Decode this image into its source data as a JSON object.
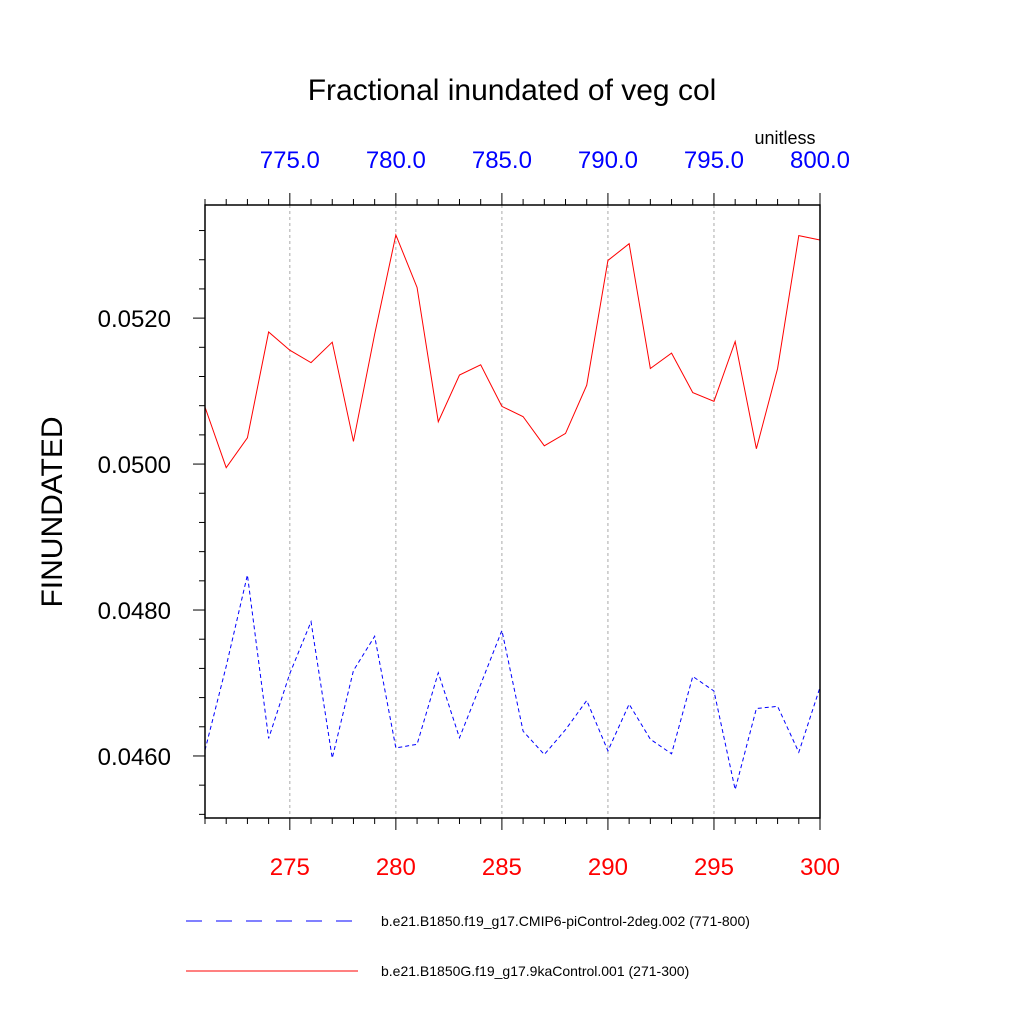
{
  "chart_data": {
    "type": "line",
    "title": "Fractional inundated of veg col",
    "units": "unitless",
    "ylabel": "FINUNDATED",
    "xlim_bottom": [
      271,
      300
    ],
    "xlim_top": [
      771,
      800
    ],
    "ylim": [
      0.04515,
      0.05355
    ],
    "bottom_ticks": [
      {
        "value": 275,
        "label": "275"
      },
      {
        "value": 280,
        "label": "280"
      },
      {
        "value": 285,
        "label": "285"
      },
      {
        "value": 290,
        "label": "290"
      },
      {
        "value": 295,
        "label": "295"
      },
      {
        "value": 300,
        "label": "300"
      }
    ],
    "top_ticks": [
      {
        "value": 775,
        "label": "775.0"
      },
      {
        "value": 780,
        "label": "780.0"
      },
      {
        "value": 785,
        "label": "785.0"
      },
      {
        "value": 790,
        "label": "790.0"
      },
      {
        "value": 795,
        "label": "795.0"
      },
      {
        "value": 800,
        "label": "800.0"
      }
    ],
    "y_ticks": [
      {
        "value": 0.046,
        "label": "0.0460"
      },
      {
        "value": 0.048,
        "label": "0.0480"
      },
      {
        "value": 0.05,
        "label": "0.0500"
      },
      {
        "value": 0.052,
        "label": "0.0520"
      }
    ],
    "grid_x_at": [
      275,
      280,
      285,
      290,
      295
    ],
    "series": [
      {
        "name": "b.e21.B1850.f19_g17.CMIP6-piControl-2deg.002 (771-800)",
        "axis": "top",
        "color": "#0000ff",
        "style": "dashed",
        "x": [
          771,
          772,
          773,
          774,
          775,
          776,
          777,
          778,
          779,
          780,
          781,
          782,
          783,
          784,
          785,
          786,
          787,
          788,
          789,
          790,
          791,
          792,
          793,
          794,
          795,
          796,
          797,
          798,
          799,
          800
        ],
        "values": [
          0.04608,
          0.04723,
          0.04848,
          0.04624,
          0.04713,
          0.04784,
          0.04597,
          0.04717,
          0.04764,
          0.04611,
          0.04616,
          0.04714,
          0.04625,
          0.04698,
          0.04772,
          0.04634,
          0.04602,
          0.04636,
          0.04676,
          0.04607,
          0.04671,
          0.04623,
          0.04603,
          0.04709,
          0.04689,
          0.04554,
          0.04665,
          0.04668,
          0.04605,
          0.04694
        ]
      },
      {
        "name": "b.e21.B1850G.f19_g17.9kaControl.001 (271-300)",
        "axis": "bottom",
        "color": "#ff0000",
        "style": "solid",
        "x": [
          271,
          272,
          273,
          274,
          275,
          276,
          277,
          278,
          279,
          280,
          281,
          282,
          283,
          284,
          285,
          286,
          287,
          288,
          289,
          290,
          291,
          292,
          293,
          294,
          295,
          296,
          297,
          298,
          299,
          300
        ],
        "values": [
          0.05078,
          0.04995,
          0.05036,
          0.05181,
          0.05156,
          0.05139,
          0.05167,
          0.05031,
          0.05178,
          0.05314,
          0.05242,
          0.05058,
          0.05122,
          0.05136,
          0.05079,
          0.05065,
          0.05025,
          0.05042,
          0.05108,
          0.05279,
          0.05302,
          0.05131,
          0.05152,
          0.05098,
          0.05086,
          0.05168,
          0.05021,
          0.05131,
          0.05313,
          0.05307
        ]
      }
    ]
  }
}
